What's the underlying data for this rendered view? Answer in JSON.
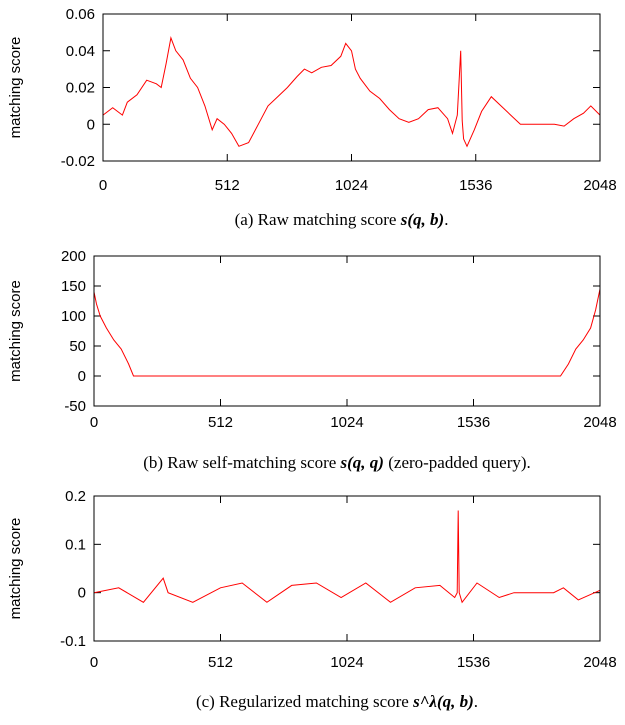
{
  "chart_data": [
    {
      "type": "line",
      "ylabel": "matching score",
      "caption_prefix": "(a) Raw matching score ",
      "caption_math": "s(q, b)",
      "caption_suffix": ".",
      "xlim": [
        0,
        2048
      ],
      "ylim": [
        -0.02,
        0.06
      ],
      "xticks": [
        "0",
        "512",
        "1024",
        "1536",
        "2048"
      ],
      "yticks": [
        "-0.02",
        "0",
        "0.02",
        "0.04",
        "0.06"
      ],
      "x": [
        0,
        40,
        80,
        100,
        140,
        180,
        220,
        240,
        260,
        280,
        300,
        330,
        360,
        390,
        420,
        450,
        470,
        500,
        530,
        560,
        600,
        640,
        680,
        720,
        760,
        800,
        830,
        860,
        900,
        940,
        980,
        1000,
        1024,
        1040,
        1060,
        1100,
        1140,
        1180,
        1220,
        1260,
        1300,
        1340,
        1380,
        1420,
        1440,
        1460,
        1474,
        1480,
        1486,
        1500,
        1530,
        1560,
        1600,
        1640,
        1680,
        1720,
        1740,
        1780,
        1820,
        1860,
        1900,
        1940,
        1980,
        2010,
        2048
      ],
      "series": [
        {
          "color": "#ff0000",
          "values": [
            0.005,
            0.009,
            0.005,
            0.012,
            0.016,
            0.024,
            0.022,
            0.02,
            0.033,
            0.047,
            0.04,
            0.035,
            0.025,
            0.02,
            0.01,
            -0.003,
            0.003,
            0.0,
            -0.005,
            -0.012,
            -0.01,
            0.0,
            0.01,
            0.015,
            0.02,
            0.026,
            0.03,
            0.028,
            0.031,
            0.032,
            0.037,
            0.044,
            0.04,
            0.03,
            0.025,
            0.018,
            0.014,
            0.008,
            0.003,
            0.001,
            0.003,
            0.008,
            0.009,
            0.003,
            -0.005,
            0.005,
            0.04,
            0.002,
            -0.008,
            -0.012,
            -0.003,
            0.007,
            0.015,
            0.01,
            0.005,
            0.0,
            0.0,
            0.0,
            0.0,
            0.0,
            -0.001,
            0.003,
            0.006,
            0.01,
            0.005
          ]
        }
      ]
    },
    {
      "type": "line",
      "ylabel": "matching score",
      "caption_prefix": "(b) Raw self-matching score ",
      "caption_math": "s(q, q)",
      "caption_suffix": " (zero-padded query).",
      "xlim": [
        0,
        2048
      ],
      "ylim": [
        -50,
        200
      ],
      "xticks": [
        "0",
        "512",
        "1024",
        "1536",
        "2048"
      ],
      "yticks": [
        "-50",
        "0",
        "50",
        "100",
        "150",
        "200"
      ],
      "x": [
        0,
        10,
        25,
        50,
        80,
        110,
        140,
        160,
        200,
        1860,
        1888,
        1920,
        1950,
        1980,
        2010,
        2030,
        2048
      ],
      "series": [
        {
          "color": "#ff0000",
          "values": [
            140,
            120,
            100,
            80,
            60,
            45,
            20,
            0,
            0,
            0,
            0,
            20,
            45,
            60,
            80,
            110,
            145
          ]
        }
      ]
    },
    {
      "type": "line",
      "ylabel": "matching score",
      "caption_prefix": "(c) Regularized matching score ",
      "caption_math": "s^λ(q, b)",
      "caption_suffix": ".",
      "xlim": [
        0,
        2048
      ],
      "ylim": [
        -0.1,
        0.2
      ],
      "xticks": [
        "0",
        "512",
        "1024",
        "1536",
        "2048"
      ],
      "yticks": [
        "-0.1",
        "0",
        "0.1",
        "0.2"
      ],
      "x": [
        0,
        100,
        200,
        280,
        300,
        400,
        512,
        600,
        700,
        800,
        900,
        1000,
        1100,
        1200,
        1300,
        1400,
        1460,
        1470,
        1474,
        1478,
        1490,
        1550,
        1640,
        1700,
        1760,
        1820,
        1860,
        1900,
        1960,
        2048
      ],
      "series": [
        {
          "color": "#ff0000",
          "values": [
            0.0,
            0.01,
            -0.02,
            0.03,
            0.0,
            -0.02,
            0.01,
            0.02,
            -0.02,
            0.015,
            0.02,
            -0.01,
            0.02,
            -0.02,
            0.01,
            0.015,
            -0.01,
            0.0,
            0.17,
            0.0,
            -0.02,
            0.02,
            -0.01,
            0.0,
            0.0,
            0.0,
            0.0,
            0.01,
            -0.015,
            0.005
          ]
        }
      ]
    }
  ]
}
